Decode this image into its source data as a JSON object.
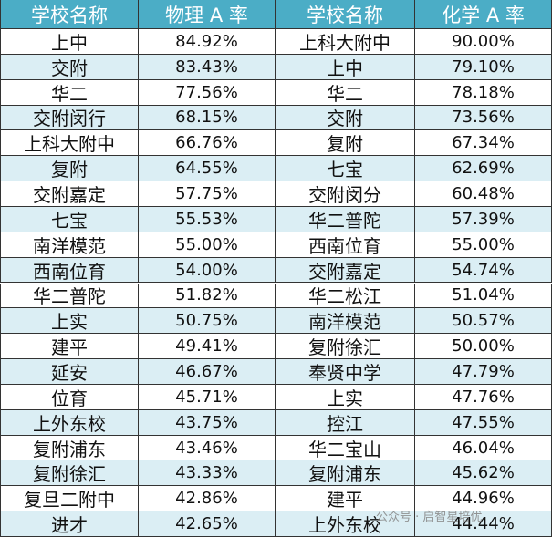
{
  "table": {
    "header": [
      "学校名称",
      "物理 A 率",
      "学校名称",
      "化学 A 率"
    ],
    "rows": [
      [
        "上中",
        "84.92%",
        "上科大附中",
        "90.00%"
      ],
      [
        "交附",
        "83.43%",
        "上中",
        "79.10%"
      ],
      [
        "华二",
        "77.56%",
        "华二",
        "78.18%"
      ],
      [
        "交附闵行",
        "68.15%",
        "交附",
        "73.56%"
      ],
      [
        "上科大附中",
        "66.76%",
        "复附",
        "67.34%"
      ],
      [
        "复附",
        "64.55%",
        "七宝",
        "62.69%"
      ],
      [
        "交附嘉定",
        "57.75%",
        "交附闵分",
        "60.48%"
      ],
      [
        "七宝",
        "55.53%",
        "华二普陀",
        "57.39%"
      ],
      [
        "南洋模范",
        "55.00%",
        "西南位育",
        "55.00%"
      ],
      [
        "西南位育",
        "54.00%",
        "交附嘉定",
        "54.74%"
      ],
      [
        "华二普陀",
        "51.82%",
        "华二松江",
        "51.04%"
      ],
      [
        "上实",
        "50.75%",
        "南洋模范",
        "50.57%"
      ],
      [
        "建平",
        "49.41%",
        "复附徐汇",
        "50.00%"
      ],
      [
        "延安",
        "46.67%",
        "奉贤中学",
        "47.79%"
      ],
      [
        "位育",
        "45.71%",
        "上实",
        "47.76%"
      ],
      [
        "上外东校",
        "43.75%",
        "控江",
        "47.55%"
      ],
      [
        "复附浦东",
        "43.46%",
        "华二宝山",
        "46.04%"
      ],
      [
        "复附徐汇",
        "43.33%",
        "复附浦东",
        "45.62%"
      ],
      [
        "复旦二附中",
        "42.86%",
        "建平",
        "44.96%"
      ],
      [
        "进才",
        "42.65%",
        "上外东校",
        "44.44%"
      ]
    ]
  },
  "watermark": "公众号 · 启智星培优"
}
